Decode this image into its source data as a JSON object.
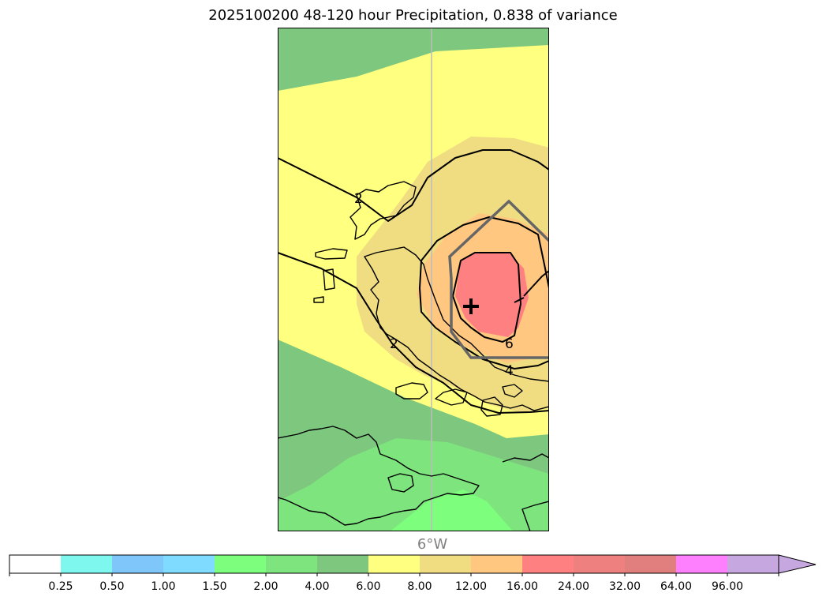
{
  "title": "2025100200 48-120 hour Precipitation, 0.838 of variance",
  "map": {
    "longitude_label": "6°W",
    "contour_labels": [
      "2",
      "2",
      "6",
      "4"
    ],
    "centre_marker": "plus-marker"
  },
  "colorbar": {
    "segment_colors": [
      "#ffffff",
      "#7ef7ef",
      "#7fc7fa",
      "#7fdbff",
      "#7dff7d",
      "#7ee47e",
      "#7ec77e",
      "#ffff80",
      "#f0dd82",
      "#ffc77f",
      "#ff8080",
      "#ee8080",
      "#e17e7e",
      "#ff80ff",
      "#c7a7e0"
    ],
    "tick_labels": [
      "0.25",
      "0.50",
      "1.00",
      "1.50",
      "2.00",
      "4.00",
      "6.00",
      "8.00",
      "12.00",
      "16.00",
      "24.00",
      "32.00",
      "64.00",
      "96.00"
    ],
    "extend": "max"
  }
}
